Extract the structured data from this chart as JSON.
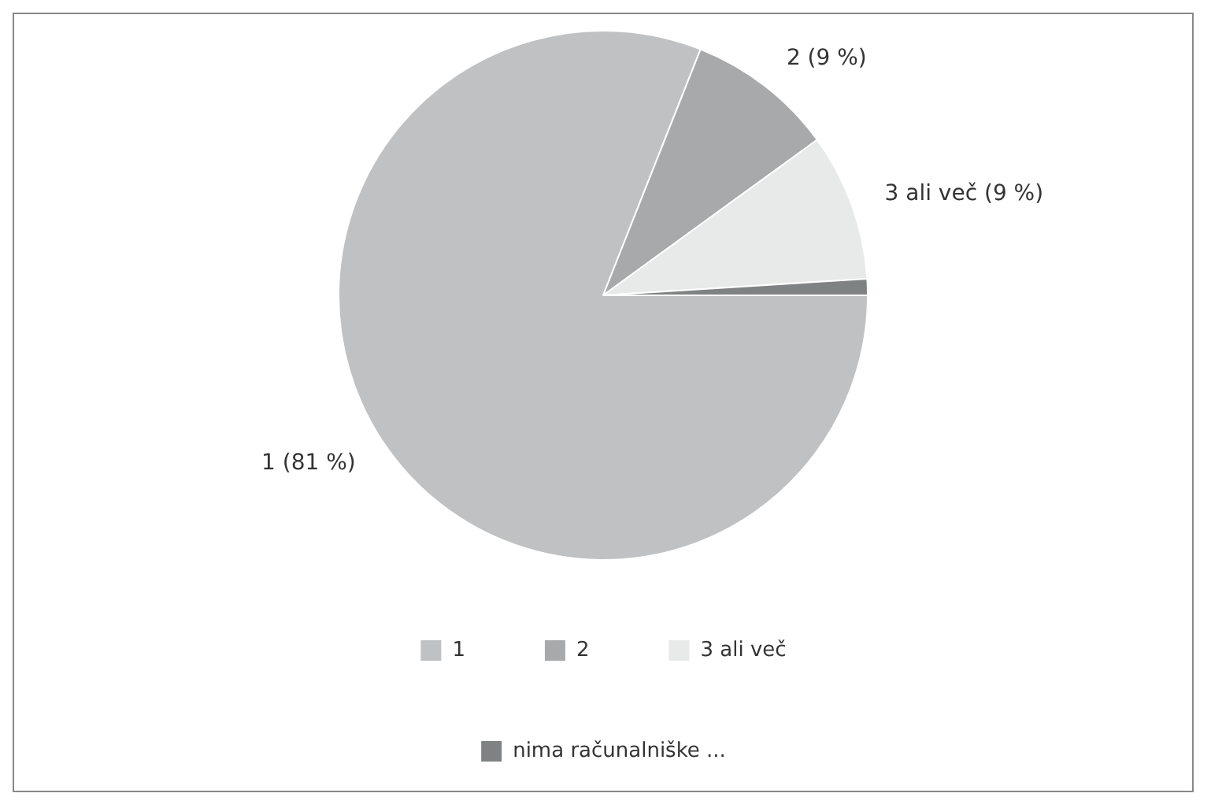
{
  "chart_data": {
    "type": "pie",
    "categories": [
      "1",
      "2",
      "3 ali več",
      "nima računalniške ..."
    ],
    "values": [
      81,
      9,
      9,
      1
    ],
    "colors": [
      "#c0c1c2",
      "#a7a9aa",
      "#e8e9e9",
      "#7f8283"
    ],
    "value_labels": [
      "1 (81 %)",
      "2 (9 %)",
      "3 ali več (9 %)",
      null
    ],
    "legend": "bottom"
  }
}
